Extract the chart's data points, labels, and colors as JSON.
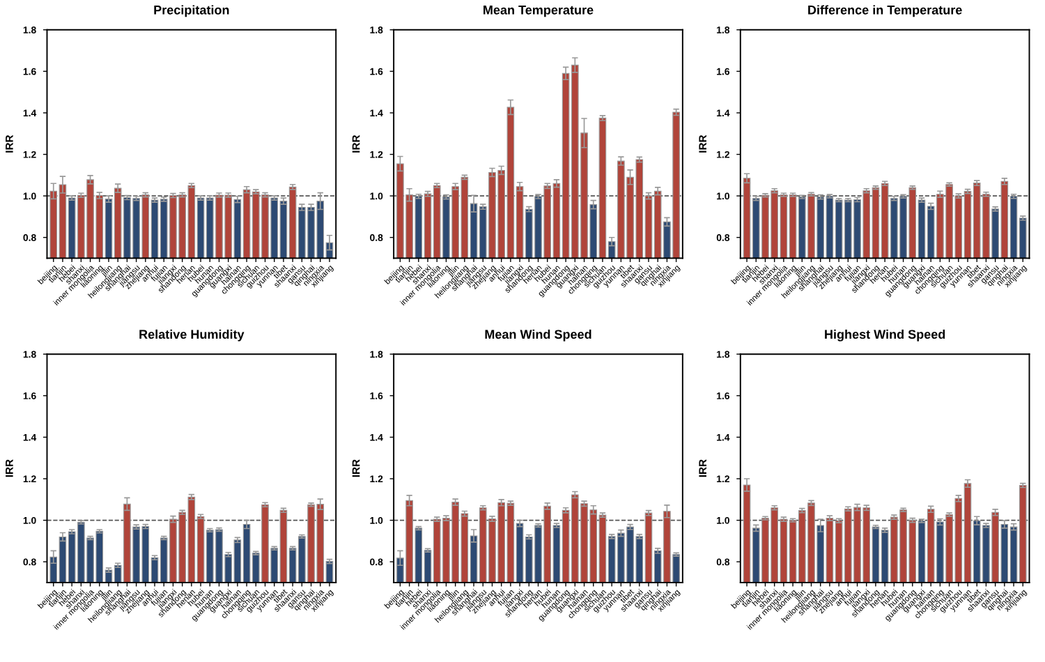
{
  "chart_data": [
    {
      "type": "bar",
      "title": "Precipitation",
      "ylabel": "IRR",
      "categories": [
        "beijing",
        "tianjin",
        "hebei",
        "shanxi",
        "inner mongolia",
        "liaoning",
        "jilin",
        "heilongjiang",
        "shanghai",
        "jiangsu",
        "zhejiang",
        "anhui",
        "fujian",
        "jiangxi",
        "shandong",
        "henan",
        "hubei",
        "hunan",
        "guangdong",
        "guangxi",
        "hainan",
        "chongqing",
        "sichuan",
        "guizhou",
        "yunnan",
        "tibet",
        "shaanxi",
        "gansu",
        "qinghai",
        "ningxia",
        "xinjiang"
      ],
      "values": [
        1.023,
        1.054,
        0.99,
        1.003,
        1.078,
        1.002,
        0.985,
        1.037,
        0.992,
        0.988,
        1.005,
        0.98,
        0.984,
        1.002,
        1.005,
        1.05,
        0.99,
        0.99,
        1.004,
        1.004,
        0.983,
        1.03,
        1.02,
        1.005,
        0.99,
        0.975,
        1.043,
        0.945,
        0.945,
        0.975,
        0.775
      ],
      "errors": [
        0.037,
        0.04,
        0.01,
        0.01,
        0.02,
        0.015,
        0.015,
        0.02,
        0.01,
        0.01,
        0.01,
        0.01,
        0.01,
        0.01,
        0.01,
        0.01,
        0.01,
        0.01,
        0.01,
        0.01,
        0.015,
        0.015,
        0.01,
        0.01,
        0.01,
        0.015,
        0.012,
        0.015,
        0.015,
        0.04,
        0.035
      ],
      "colors": [
        "#b0443a",
        "#b0443a",
        "#2d4a73",
        "#b0443a",
        "#b0443a",
        "#b0443a",
        "#2d4a73",
        "#b0443a",
        "#2d4a73",
        "#2d4a73",
        "#b0443a",
        "#2d4a73",
        "#2d4a73",
        "#b0443a",
        "#b0443a",
        "#b0443a",
        "#2d4a73",
        "#2d4a73",
        "#b0443a",
        "#b0443a",
        "#2d4a73",
        "#b0443a",
        "#b0443a",
        "#b0443a",
        "#2d4a73",
        "#2d4a73",
        "#b0443a",
        "#2d4a73",
        "#2d4a73",
        "#2d4a73",
        "#2d4a73"
      ],
      "ylim": [
        0.7,
        1.8
      ],
      "yticks": [
        {
          "value": 0.8,
          "label": "0.8"
        },
        {
          "value": 1.0,
          "label": "1.0"
        },
        {
          "value": 1.2,
          "label": "1.2"
        },
        {
          "value": 1.4,
          "label": "1.4"
        },
        {
          "value": 1.6,
          "label": "1.6"
        },
        {
          "value": 1.8,
          "label": "1.8"
        }
      ],
      "ref_lines": [
        {
          "axis": "y",
          "value": 1.0,
          "color": "#555555",
          "line_style": "dashed"
        }
      ]
    },
    {
      "type": "bar",
      "title": "Mean Temperature",
      "ylabel": "IRR",
      "categories": [
        "beijing",
        "tianjin",
        "hebei",
        "shanxi",
        "inner mongolia",
        "liaoning",
        "jilin",
        "heilongjiang",
        "shanghai",
        "jiangsu",
        "zhejiang",
        "anhui",
        "fujian",
        "jiangxi",
        "shandong",
        "henan",
        "hubei",
        "hunan",
        "guangdong",
        "guangxi",
        "hainan",
        "chongqing",
        "sichuan",
        "guizhou",
        "yunnan",
        "tibet",
        "shaanxi",
        "gansu",
        "qinghai",
        "ningxia",
        "xinjiang"
      ],
      "values": [
        1.155,
        1.005,
        0.998,
        1.01,
        1.05,
        0.995,
        1.045,
        1.09,
        0.963,
        0.948,
        1.113,
        1.123,
        1.427,
        1.045,
        0.936,
        0.997,
        1.048,
        1.06,
        1.59,
        1.63,
        1.303,
        0.958,
        1.375,
        0.78,
        1.168,
        1.09,
        1.175,
        1.0,
        1.023,
        0.875,
        1.403
      ],
      "errors": [
        0.035,
        0.03,
        0.01,
        0.012,
        0.01,
        0.01,
        0.015,
        0.01,
        0.04,
        0.012,
        0.02,
        0.02,
        0.035,
        0.02,
        0.012,
        0.01,
        0.012,
        0.018,
        0.03,
        0.035,
        0.07,
        0.02,
        0.012,
        0.02,
        0.02,
        0.035,
        0.012,
        0.015,
        0.018,
        0.02,
        0.015
      ],
      "colors": [
        "#b0443a",
        "#b0443a",
        "#2d4a73",
        "#b0443a",
        "#b0443a",
        "#2d4a73",
        "#b0443a",
        "#b0443a",
        "#2d4a73",
        "#2d4a73",
        "#b0443a",
        "#b0443a",
        "#b0443a",
        "#b0443a",
        "#2d4a73",
        "#2d4a73",
        "#b0443a",
        "#b0443a",
        "#b0443a",
        "#b0443a",
        "#b0443a",
        "#2d4a73",
        "#b0443a",
        "#2d4a73",
        "#b0443a",
        "#b0443a",
        "#b0443a",
        "#b0443a",
        "#b0443a",
        "#2d4a73",
        "#b0443a"
      ],
      "ylim": [
        0.7,
        1.8
      ],
      "yticks": [
        {
          "value": 0.8,
          "label": "0.8"
        },
        {
          "value": 1.0,
          "label": "1.0"
        },
        {
          "value": 1.2,
          "label": "1.2"
        },
        {
          "value": 1.4,
          "label": "1.4"
        },
        {
          "value": 1.6,
          "label": "1.6"
        },
        {
          "value": 1.8,
          "label": "1.8"
        }
      ],
      "ref_lines": [
        {
          "axis": "y",
          "value": 1.0,
          "color": "#555555",
          "line_style": "dashed"
        }
      ]
    },
    {
      "type": "bar",
      "title": "Difference in Temperature",
      "ylabel": "IRR",
      "categories": [
        "beijing",
        "tianjin",
        "hebei",
        "shanxi",
        "inner mongolia",
        "liaoning",
        "jilin",
        "heilongjiang",
        "shanghai",
        "jiangsu",
        "zhejiang",
        "anhui",
        "fujian",
        "jiangxi",
        "shandong",
        "henan",
        "hubei",
        "hunan",
        "guangdong",
        "guangxi",
        "hainan",
        "chongqing",
        "sichuan",
        "guizhou",
        "yunnan",
        "tibet",
        "shaanxi",
        "gansu",
        "qinghai",
        "ningxia",
        "xinjiang"
      ],
      "values": [
        1.085,
        0.988,
        1.003,
        1.025,
        1.005,
        1.005,
        0.995,
        1.008,
        0.995,
        0.999,
        0.98,
        0.98,
        0.982,
        1.025,
        1.04,
        1.06,
        0.988,
        0.998,
        1.04,
        0.98,
        0.95,
        1.008,
        1.055,
        1.0,
        1.022,
        1.062,
        1.008,
        0.937,
        1.07,
        0.998,
        0.893
      ],
      "errors": [
        0.022,
        0.01,
        0.008,
        0.01,
        0.008,
        0.008,
        0.008,
        0.008,
        0.01,
        0.008,
        0.008,
        0.008,
        0.01,
        0.01,
        0.008,
        0.01,
        0.01,
        0.008,
        0.008,
        0.01,
        0.015,
        0.015,
        0.008,
        0.01,
        0.01,
        0.012,
        0.01,
        0.01,
        0.015,
        0.01,
        0.01
      ],
      "colors": [
        "#b0443a",
        "#2d4a73",
        "#b0443a",
        "#b0443a",
        "#b0443a",
        "#b0443a",
        "#2d4a73",
        "#b0443a",
        "#2d4a73",
        "#2d4a73",
        "#2d4a73",
        "#2d4a73",
        "#2d4a73",
        "#b0443a",
        "#b0443a",
        "#b0443a",
        "#2d4a73",
        "#2d4a73",
        "#b0443a",
        "#2d4a73",
        "#2d4a73",
        "#b0443a",
        "#b0443a",
        "#b0443a",
        "#b0443a",
        "#b0443a",
        "#b0443a",
        "#2d4a73",
        "#b0443a",
        "#2d4a73",
        "#2d4a73"
      ],
      "ylim": [
        0.7,
        1.8
      ],
      "yticks": [
        {
          "value": 0.8,
          "label": "0.8"
        },
        {
          "value": 1.0,
          "label": "1.0"
        },
        {
          "value": 1.2,
          "label": "1.2"
        },
        {
          "value": 1.4,
          "label": "1.4"
        },
        {
          "value": 1.6,
          "label": "1.6"
        },
        {
          "value": 1.8,
          "label": "1.8"
        }
      ],
      "ref_lines": [
        {
          "axis": "y",
          "value": 1.0,
          "color": "#555555",
          "line_style": "dashed"
        }
      ]
    },
    {
      "type": "bar",
      "title": "Relative Humidity",
      "ylabel": "IRR",
      "categories": [
        "beijing",
        "tianjin",
        "hebei",
        "shanxi",
        "inner mongolia",
        "liaoning",
        "jilin",
        "heilongjiang",
        "shanghai",
        "jiangsu",
        "zhejiang",
        "anhui",
        "fujian",
        "jiangxi",
        "shandong",
        "henan",
        "hubei",
        "hunan",
        "guangdong",
        "guangxi",
        "hainan",
        "chongqing",
        "sichuan",
        "guizhou",
        "yunnan",
        "tibet",
        "shaanxi",
        "gansu",
        "qinghai",
        "ningxia",
        "xinjiang"
      ],
      "values": [
        0.823,
        0.92,
        0.945,
        0.99,
        0.915,
        0.947,
        0.76,
        0.783,
        1.078,
        0.968,
        0.97,
        0.82,
        0.915,
        1.005,
        1.038,
        1.112,
        1.018,
        0.952,
        0.955,
        0.835,
        0.905,
        0.98,
        0.842,
        1.075,
        0.865,
        1.048,
        0.865,
        0.922,
        1.075,
        1.077,
        0.802
      ],
      "errors": [
        0.03,
        0.02,
        0.01,
        0.008,
        0.008,
        0.008,
        0.01,
        0.01,
        0.03,
        0.01,
        0.01,
        0.01,
        0.008,
        0.015,
        0.01,
        0.012,
        0.01,
        0.008,
        0.008,
        0.01,
        0.012,
        0.02,
        0.008,
        0.01,
        0.008,
        0.01,
        0.008,
        0.008,
        0.008,
        0.025,
        0.01
      ],
      "colors": [
        "#2d4a73",
        "#2d4a73",
        "#2d4a73",
        "#2d4a73",
        "#2d4a73",
        "#2d4a73",
        "#2d4a73",
        "#2d4a73",
        "#b0443a",
        "#2d4a73",
        "#2d4a73",
        "#2d4a73",
        "#2d4a73",
        "#b0443a",
        "#b0443a",
        "#b0443a",
        "#b0443a",
        "#2d4a73",
        "#2d4a73",
        "#2d4a73",
        "#2d4a73",
        "#2d4a73",
        "#2d4a73",
        "#b0443a",
        "#2d4a73",
        "#b0443a",
        "#2d4a73",
        "#2d4a73",
        "#b0443a",
        "#b0443a",
        "#2d4a73"
      ],
      "ylim": [
        0.7,
        1.8
      ],
      "yticks": [
        {
          "value": 0.8,
          "label": "0.8"
        },
        {
          "value": 1.0,
          "label": "1.0"
        },
        {
          "value": 1.2,
          "label": "1.2"
        },
        {
          "value": 1.4,
          "label": "1.4"
        },
        {
          "value": 1.6,
          "label": "1.6"
        },
        {
          "value": 1.8,
          "label": "1.8"
        }
      ],
      "ref_lines": [
        {
          "axis": "y",
          "value": 1.0,
          "color": "#555555",
          "line_style": "dashed"
        }
      ]
    },
    {
      "type": "bar",
      "title": "Mean Wind Speed",
      "ylabel": "IRR",
      "categories": [
        "beijing",
        "tianjin",
        "hebei",
        "shanxi",
        "inner mongolia",
        "liaoning",
        "jilin",
        "heilongjiang",
        "shanghai",
        "jiangsu",
        "zhejiang",
        "anhui",
        "fujian",
        "jiangxi",
        "shandong",
        "henan",
        "hubei",
        "hunan",
        "guangdong",
        "guangxi",
        "hainan",
        "chongqing",
        "sichuan",
        "guizhou",
        "yunnan",
        "tibet",
        "shaanxi",
        "gansu",
        "qinghai",
        "ningxia",
        "xinjiang"
      ],
      "values": [
        0.818,
        1.095,
        0.962,
        0.855,
        1.005,
        1.01,
        1.087,
        1.032,
        0.925,
        1.06,
        1.007,
        1.085,
        1.082,
        0.985,
        0.92,
        0.975,
        1.068,
        0.975,
        1.048,
        1.123,
        1.08,
        1.05,
        1.025,
        0.922,
        0.938,
        0.968,
        0.922,
        1.035,
        0.853,
        1.043,
        0.835
      ],
      "errors": [
        0.035,
        0.025,
        0.008,
        0.008,
        0.01,
        0.012,
        0.015,
        0.012,
        0.03,
        0.01,
        0.012,
        0.015,
        0.01,
        0.015,
        0.01,
        0.008,
        0.015,
        0.01,
        0.012,
        0.015,
        0.012,
        0.02,
        0.01,
        0.01,
        0.015,
        0.012,
        0.01,
        0.012,
        0.012,
        0.03,
        0.008
      ],
      "colors": [
        "#2d4a73",
        "#b0443a",
        "#2d4a73",
        "#2d4a73",
        "#b0443a",
        "#b0443a",
        "#b0443a",
        "#b0443a",
        "#2d4a73",
        "#b0443a",
        "#b0443a",
        "#b0443a",
        "#b0443a",
        "#2d4a73",
        "#2d4a73",
        "#2d4a73",
        "#b0443a",
        "#2d4a73",
        "#b0443a",
        "#b0443a",
        "#b0443a",
        "#b0443a",
        "#b0443a",
        "#2d4a73",
        "#2d4a73",
        "#2d4a73",
        "#2d4a73",
        "#b0443a",
        "#2d4a73",
        "#b0443a",
        "#2d4a73"
      ],
      "ylim": [
        0.7,
        1.8
      ],
      "yticks": [
        {
          "value": 0.8,
          "label": "0.8"
        },
        {
          "value": 1.0,
          "label": "1.0"
        },
        {
          "value": 1.2,
          "label": "1.2"
        },
        {
          "value": 1.4,
          "label": "1.4"
        },
        {
          "value": 1.6,
          "label": "1.6"
        },
        {
          "value": 1.8,
          "label": "1.8"
        }
      ],
      "ref_lines": [
        {
          "axis": "y",
          "value": 1.0,
          "color": "#555555",
          "line_style": "dashed"
        }
      ]
    },
    {
      "type": "bar",
      "title": "Highest Wind Speed",
      "ylabel": "IRR",
      "categories": [
        "beijing",
        "tianjin",
        "hebei",
        "shanxi",
        "inner mongolia",
        "liaoning",
        "jilin",
        "heilongjiang",
        "shanghai",
        "jiangsu",
        "zhejiang",
        "anhui",
        "fujian",
        "jiangxi",
        "shandong",
        "henan",
        "hubei",
        "hunan",
        "guangdong",
        "guangxi",
        "hainan",
        "chongqing",
        "sichuan",
        "guizhou",
        "yunnan",
        "tibet",
        "shaanxi",
        "gansu",
        "qinghai",
        "ningxia",
        "xinjiang"
      ],
      "values": [
        1.17,
        0.962,
        1.01,
        1.06,
        1.005,
        1.0,
        1.047,
        1.083,
        0.975,
        1.01,
        0.998,
        1.055,
        1.062,
        1.06,
        0.968,
        0.952,
        1.015,
        1.05,
        1.0,
        0.997,
        1.053,
        0.992,
        1.027,
        1.105,
        1.177,
        0.998,
        0.975,
        1.038,
        0.98,
        0.968,
        1.168
      ],
      "errors": [
        0.03,
        0.015,
        0.008,
        0.01,
        0.01,
        0.008,
        0.01,
        0.012,
        0.03,
        0.012,
        0.01,
        0.01,
        0.015,
        0.012,
        0.008,
        0.01,
        0.01,
        0.008,
        0.01,
        0.008,
        0.015,
        0.015,
        0.008,
        0.015,
        0.018,
        0.02,
        0.01,
        0.015,
        0.018,
        0.015,
        0.01
      ],
      "colors": [
        "#b0443a",
        "#2d4a73",
        "#b0443a",
        "#b0443a",
        "#b0443a",
        "#b0443a",
        "#b0443a",
        "#b0443a",
        "#2d4a73",
        "#b0443a",
        "#b0443a",
        "#b0443a",
        "#b0443a",
        "#b0443a",
        "#2d4a73",
        "#2d4a73",
        "#b0443a",
        "#b0443a",
        "#b0443a",
        "#2d4a73",
        "#b0443a",
        "#2d4a73",
        "#b0443a",
        "#b0443a",
        "#b0443a",
        "#2d4a73",
        "#2d4a73",
        "#b0443a",
        "#2d4a73",
        "#2d4a73",
        "#b0443a"
      ],
      "ylim": [
        0.7,
        1.8
      ],
      "yticks": [
        {
          "value": 0.8,
          "label": "0.8"
        },
        {
          "value": 1.0,
          "label": "1.0"
        },
        {
          "value": 1.2,
          "label": "1.2"
        },
        {
          "value": 1.4,
          "label": "1.4"
        },
        {
          "value": 1.6,
          "label": "1.6"
        },
        {
          "value": 1.8,
          "label": "1.8"
        }
      ],
      "ref_lines": [
        {
          "axis": "y",
          "value": 1.0,
          "color": "#555555",
          "line_style": "dashed"
        }
      ]
    }
  ]
}
